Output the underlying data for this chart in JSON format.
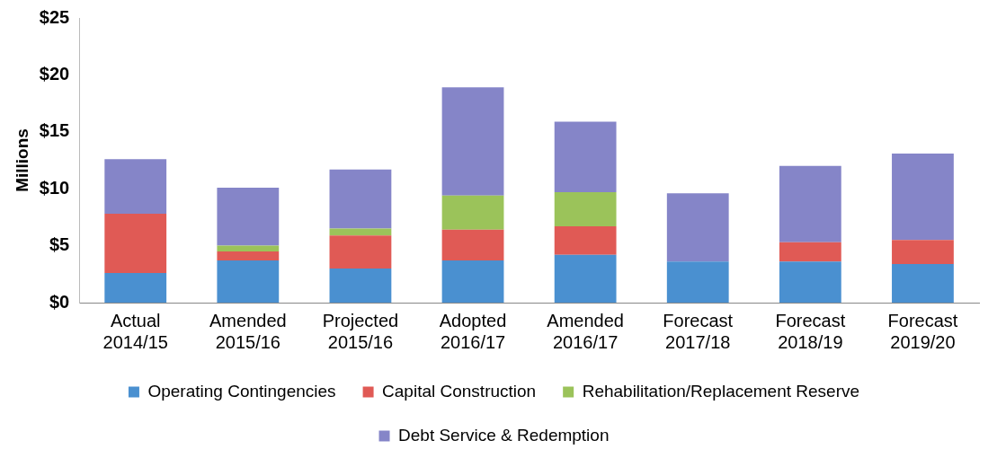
{
  "chart_data": {
    "type": "bar",
    "stacked": true,
    "ylabel": "Millions",
    "categories": [
      "Actual 2014/15",
      "Amended 2015/16",
      "Projected 2015/16",
      "Adopted 2016/17",
      "Amended 2016/17",
      "Forecast 2017/18",
      "Forecast 2018/19",
      "Forecast 2019/20"
    ],
    "series": [
      {
        "name": "Operating Contingencies",
        "color": "#4a90d0",
        "values": [
          2.6,
          3.7,
          3.0,
          3.7,
          4.2,
          3.6,
          3.6,
          3.4
        ]
      },
      {
        "name": "Capital Construction",
        "color": "#e05a55",
        "values": [
          5.2,
          0.8,
          2.9,
          2.7,
          2.5,
          0,
          1.7,
          2.1
        ]
      },
      {
        "name": "Rehabilitation/Replacement Reserve",
        "color": "#9bc35a",
        "values": [
          0,
          0.5,
          0.6,
          3.0,
          3.0,
          0,
          0,
          0
        ]
      },
      {
        "name": "Debt Service & Redemption",
        "color": "#8585c8",
        "values": [
          4.8,
          5.1,
          5.2,
          9.5,
          6.2,
          6.0,
          6.7,
          7.6
        ]
      }
    ],
    "ylim": [
      0,
      25
    ],
    "yticks": [
      {
        "value": 0,
        "label": "$0"
      },
      {
        "value": 5,
        "label": "$5"
      },
      {
        "value": 10,
        "label": "$10"
      },
      {
        "value": 15,
        "label": "$15"
      },
      {
        "value": 20,
        "label": "$20"
      },
      {
        "value": 25,
        "label": "$25"
      }
    ],
    "grid": false,
    "legend": "bottom"
  }
}
